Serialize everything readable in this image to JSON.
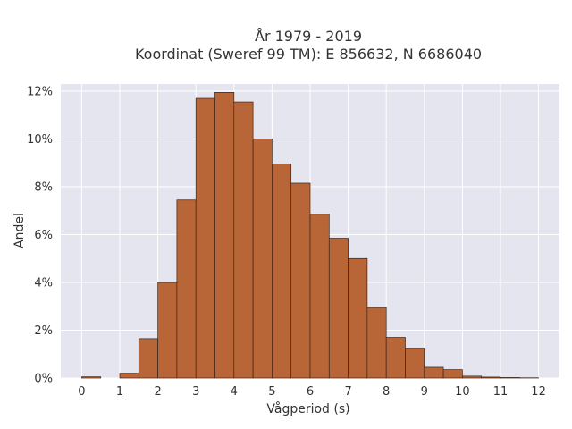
{
  "chart_data": {
    "type": "bar",
    "title_lines": [
      "År 1979 - 2019",
      "Koordinat (Sweref 99 TM): E 856632, N 6686040"
    ],
    "xlabel": "Vågperiod (s)",
    "ylabel": "Andel",
    "bin_width": 0.5,
    "bins": [
      {
        "x": 0.0,
        "value": 0.05
      },
      {
        "x": 0.5,
        "value": 0.0
      },
      {
        "x": 1.0,
        "value": 0.2
      },
      {
        "x": 1.5,
        "value": 1.65
      },
      {
        "x": 2.0,
        "value": 4.0
      },
      {
        "x": 2.5,
        "value": 7.45
      },
      {
        "x": 3.0,
        "value": 11.7
      },
      {
        "x": 3.5,
        "value": 11.95
      },
      {
        "x": 4.0,
        "value": 11.55
      },
      {
        "x": 4.5,
        "value": 10.0
      },
      {
        "x": 5.0,
        "value": 8.95
      },
      {
        "x": 5.5,
        "value": 8.15
      },
      {
        "x": 6.0,
        "value": 6.85
      },
      {
        "x": 6.5,
        "value": 5.85
      },
      {
        "x": 7.0,
        "value": 5.0
      },
      {
        "x": 7.5,
        "value": 2.95
      },
      {
        "x": 8.0,
        "value": 1.7
      },
      {
        "x": 8.5,
        "value": 1.25
      },
      {
        "x": 9.0,
        "value": 0.45
      },
      {
        "x": 9.5,
        "value": 0.35
      },
      {
        "x": 10.0,
        "value": 0.08
      },
      {
        "x": 10.5,
        "value": 0.04
      },
      {
        "x": 11.0,
        "value": 0.02
      },
      {
        "x": 11.5,
        "value": 0.01
      }
    ],
    "xlim": [
      -0.55,
      12.55
    ],
    "ylim": [
      0,
      12.3
    ],
    "xticks": [
      0,
      1,
      2,
      3,
      4,
      5,
      6,
      7,
      8,
      9,
      10,
      11,
      12
    ],
    "xtick_labels": [
      "0",
      "1",
      "2",
      "3",
      "4",
      "5",
      "6",
      "7",
      "8",
      "9",
      "10",
      "11",
      "12"
    ],
    "yticks": [
      0,
      2,
      4,
      6,
      8,
      10,
      12
    ],
    "ytick_labels": [
      "0%",
      "2%",
      "4%",
      "6%",
      "8%",
      "10%",
      "12%"
    ],
    "grid": true,
    "colors": {
      "bar_fill": "#b86638",
      "bar_edge": "#3a2418",
      "plot_background": "#e5e5ef",
      "grid": "#ffffff",
      "text": "#333333"
    }
  }
}
